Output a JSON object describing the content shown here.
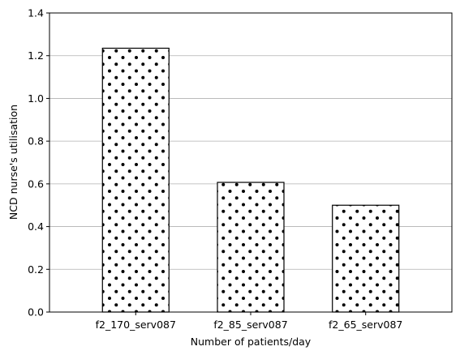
{
  "chart_data": {
    "type": "bar",
    "title": "",
    "xlabel": "Number of patients/day",
    "ylabel": "NCD nurse's utilisation",
    "categories": [
      "f2_170_serv087",
      "f2_85_serv087",
      "f2_65_serv087"
    ],
    "values": [
      1.235,
      0.607,
      0.5
    ],
    "ylim": [
      0,
      1.4
    ],
    "yticks": [
      0.0,
      0.2,
      0.4,
      0.6,
      0.8,
      1.0,
      1.2,
      1.4
    ],
    "ytick_labels": [
      "0.0",
      "0.2",
      "0.4",
      "0.6",
      "0.8",
      "1.0",
      "1.2",
      "1.4"
    ],
    "grid": "y",
    "bar_fill": "#ffffff",
    "bar_edge": "#000000",
    "hatch": "dots"
  }
}
